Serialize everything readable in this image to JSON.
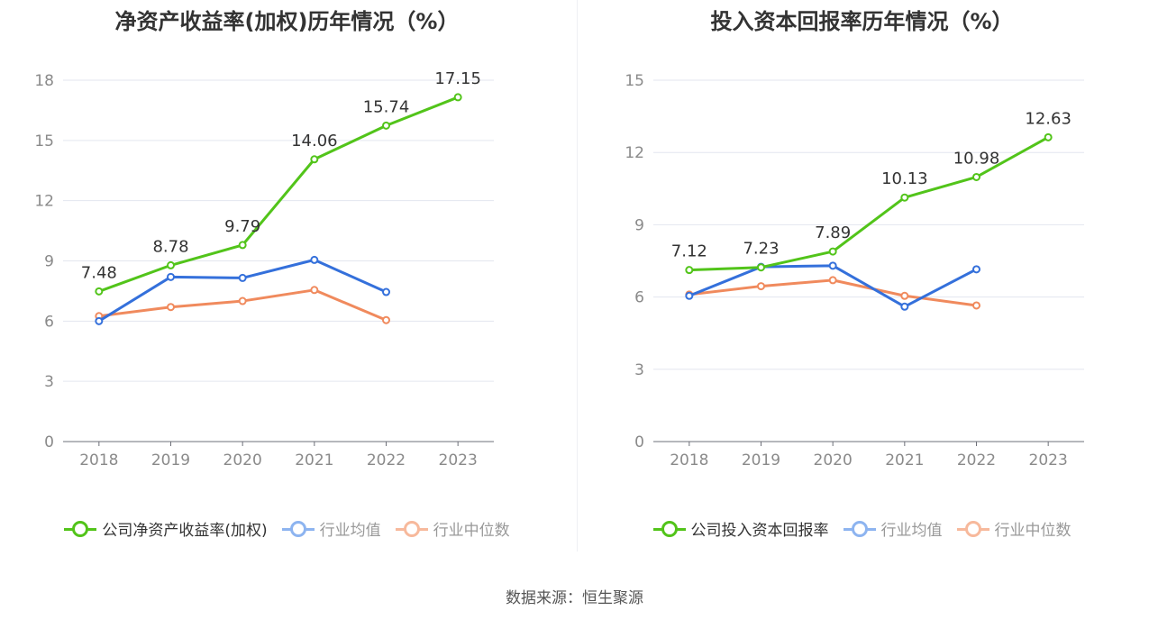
{
  "chart_data": [
    {
      "type": "line",
      "title": "净资产收益率(加权)历年情况（%）",
      "categories": [
        "2018",
        "2019",
        "2020",
        "2021",
        "2022",
        "2023"
      ],
      "ylim": [
        0,
        18
      ],
      "yticks": [
        "0",
        "3",
        "6",
        "9",
        "12",
        "15",
        "18"
      ],
      "grid": true,
      "legend_position": "bottom",
      "series": [
        {
          "name": "公司净资产收益率(加权)",
          "color": "#52c41a",
          "values": [
            7.48,
            8.78,
            9.79,
            14.06,
            15.74,
            17.15
          ],
          "labels": [
            "7.48",
            "8.78",
            "9.79",
            "14.06",
            "15.74",
            "17.15"
          ]
        },
        {
          "name": "行业均值",
          "color": "#3470db",
          "values": [
            6.0,
            8.2,
            8.15,
            9.05,
            7.45,
            null
          ]
        },
        {
          "name": "行业中位数",
          "color": "#f08a5d",
          "values": [
            6.25,
            6.7,
            7.0,
            7.55,
            6.05,
            null
          ]
        }
      ]
    },
    {
      "type": "line",
      "title": "投入资本回报率历年情况（%）",
      "categories": [
        "2018",
        "2019",
        "2020",
        "2021",
        "2022",
        "2023"
      ],
      "ylim": [
        0,
        15
      ],
      "yticks": [
        "0",
        "3",
        "6",
        "9",
        "12",
        "15"
      ],
      "grid": true,
      "legend_position": "bottom",
      "series": [
        {
          "name": "公司投入资本回报率",
          "color": "#52c41a",
          "values": [
            7.12,
            7.23,
            7.89,
            10.13,
            10.98,
            12.63
          ],
          "labels": [
            "7.12",
            "7.23",
            "7.89",
            "10.13",
            "10.98",
            "12.63"
          ]
        },
        {
          "name": "行业均值",
          "color": "#3470db",
          "values": [
            6.05,
            7.25,
            7.3,
            5.6,
            7.15,
            null
          ]
        },
        {
          "name": "行业中位数",
          "color": "#f08a5d",
          "values": [
            6.1,
            6.45,
            6.7,
            6.05,
            5.65,
            null
          ]
        }
      ]
    }
  ],
  "legend_colors": {
    "company": "#52c41a",
    "avg": "#8db4f0",
    "median": "#f7b99c"
  },
  "legend_text_colors": {
    "company": "#333333",
    "inactive": "#999999"
  },
  "source": "数据来源：恒生聚源"
}
